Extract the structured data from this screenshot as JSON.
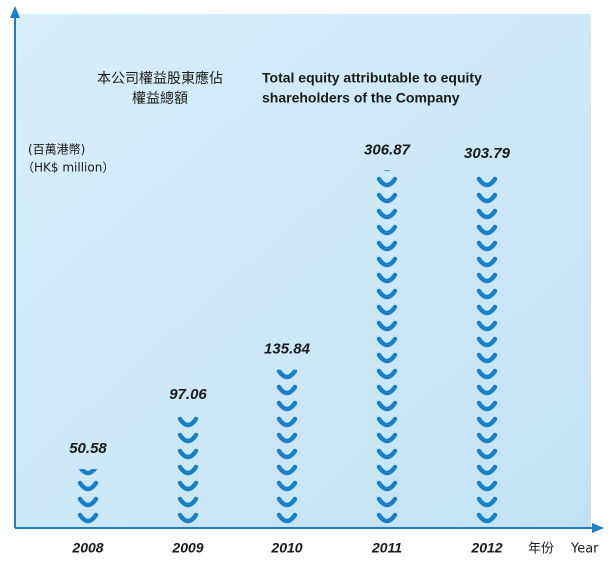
{
  "chart_data": {
    "type": "bar",
    "title_zh": [
      "本公司權益股東應佔",
      "權益總額"
    ],
    "title_en": [
      "Total equity attributable to equity",
      "shareholders of the Company"
    ],
    "unit_labels": [
      "(百萬港幣)",
      "（HK$ million）"
    ],
    "x_label": [
      "年份",
      "Year"
    ],
    "categories": [
      "2008",
      "2009",
      "2010",
      "2011",
      "2012"
    ],
    "values": [
      50.58,
      97.06,
      135.84,
      306.87,
      303.79
    ],
    "color": "#1a7fc9",
    "ylim": [
      0,
      320
    ]
  }
}
